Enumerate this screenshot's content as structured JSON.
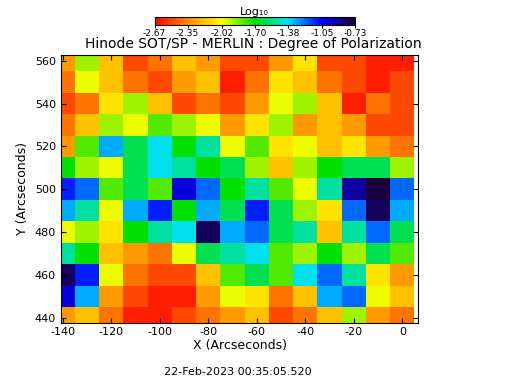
{
  "chart_data": {
    "type": "heatmap",
    "title": "Hinode SOT/SP - MERLIN : Degree of Polarization",
    "x_label": "X (Arcseconds)",
    "y_label": "Y (Arcseconds)",
    "annotation": "22-Feb-2023 00:35:05.520",
    "colorbar_label": "Log₁₀",
    "xlim": [
      -140.8,
      6.6
    ],
    "ylim": [
      437.7,
      562.7
    ],
    "xticks": [
      -140,
      -120,
      -100,
      -80,
      -60,
      -40,
      -20,
      0
    ],
    "yticks": [
      440,
      460,
      480,
      500,
      520,
      540,
      560
    ],
    "colorbar_range": [
      -2.67,
      -0.73
    ],
    "colorbar_ticks": [
      -2.67,
      -2.35,
      -2.02,
      {
        "value": -1.7,
        "label": "-1.70"
      },
      -1.38,
      -1.05,
      -0.73
    ],
    "cell_x": [
      -140,
      -130,
      -120,
      -110,
      -100,
      -90,
      -80,
      -70,
      -60,
      -50,
      -40,
      -30,
      -20,
      -10,
      0
    ],
    "cell_y": [
      440,
      450,
      460,
      470,
      480,
      490,
      500,
      510,
      520,
      530,
      540,
      550,
      560
    ],
    "cells": [
      [
        -2.3,
        -2.2,
        -2.4,
        -2.6,
        -2.6,
        -2.5,
        -2.4,
        -2.3,
        -2.2,
        -2.5,
        -2.4,
        -2.2,
        -1.9,
        -2.3,
        -2.4
      ],
      [
        -1.0,
        -1.3,
        -2.3,
        -2.5,
        -2.6,
        -2.6,
        -2.3,
        -2.0,
        -2.1,
        -2.4,
        -2.2,
        -1.3,
        -1.2,
        -2.0,
        -2.2
      ],
      [
        -0.8,
        -1.1,
        -2.0,
        -2.4,
        -2.5,
        -2.5,
        -2.2,
        -1.8,
        -1.6,
        -1.8,
        -1.4,
        -1.2,
        -1.5,
        -2.1,
        -2.3
      ],
      [
        -1.5,
        -1.7,
        -2.2,
        -2.3,
        -2.4,
        -2.0,
        -1.6,
        -1.5,
        -1.4,
        -1.8,
        -1.9,
        -1.7,
        -1.9,
        -1.6,
        -1.8
      ],
      [
        -2.0,
        -1.9,
        -2.1,
        -1.7,
        -1.5,
        -1.4,
        -0.8,
        -1.3,
        -1.2,
        -1.6,
        -1.5,
        -2.2,
        -1.5,
        -1.2,
        -1.6
      ],
      [
        -1.3,
        -1.5,
        -2.0,
        -1.3,
        -1.1,
        -1.7,
        -1.3,
        -1.6,
        -1.1,
        -1.6,
        -1.9,
        -2.1,
        -1.2,
        -0.8,
        -1.3
      ],
      [
        -1.1,
        -1.2,
        -1.8,
        -1.6,
        -1.8,
        -1.0,
        -1.2,
        -1.7,
        -1.5,
        -1.8,
        -2.0,
        -1.5,
        -0.9,
        -0.75,
        -1.2
      ],
      [
        -1.7,
        -1.9,
        -2.0,
        -1.6,
        -1.4,
        -1.5,
        -1.7,
        -1.6,
        -1.9,
        -2.2,
        -1.9,
        -1.7,
        -1.6,
        -1.6,
        -1.9
      ],
      [
        -2.3,
        -1.8,
        -1.3,
        -1.6,
        -1.4,
        -1.7,
        -1.5,
        -2.0,
        -1.8,
        -2.1,
        -2.0,
        -2.2,
        -2.1,
        -2.3,
        -2.4
      ],
      [
        -2.4,
        -2.2,
        -1.9,
        -2.0,
        -1.8,
        -1.9,
        -2.0,
        -2.3,
        -2.1,
        -1.9,
        -2.3,
        -2.2,
        -2.3,
        -2.5,
        -2.5
      ],
      [
        -2.5,
        -2.4,
        -2.1,
        -1.9,
        -2.2,
        -2.5,
        -2.4,
        -2.5,
        -2.3,
        -2.0,
        -1.9,
        -2.2,
        -2.6,
        -2.4,
        -2.5
      ],
      [
        -2.4,
        -2.0,
        -2.2,
        -2.4,
        -2.5,
        -2.3,
        -2.2,
        -2.6,
        -2.4,
        -2.1,
        -2.2,
        -2.4,
        -2.5,
        -2.6,
        -2.5
      ],
      [
        -2.3,
        -1.9,
        -2.2,
        -2.5,
        -2.4,
        -2.2,
        -2.3,
        -2.5,
        -2.5,
        -2.3,
        -2.1,
        -2.5,
        -2.5,
        -2.6,
        -2.6
      ]
    ]
  }
}
